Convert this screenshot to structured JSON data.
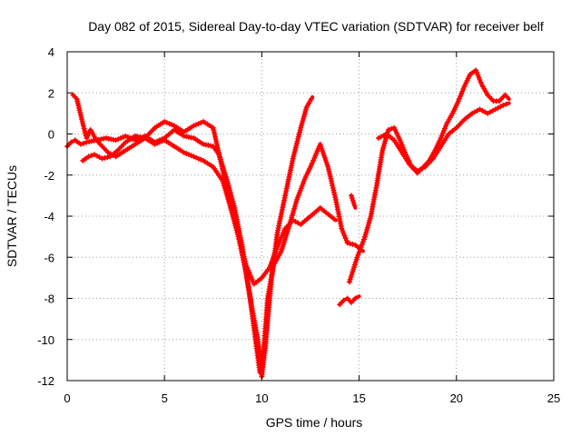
{
  "chart_data": {
    "type": "line",
    "title": "Day 082 of 2015, Sidereal Day-to-day VTEC variation (SDTVAR) for receiver belf",
    "xlabel": "GPS time / hours",
    "ylabel": "SDTVAR / TECUs",
    "xlim": [
      0,
      25
    ],
    "ylim": [
      -12,
      4
    ],
    "xticks": [
      0,
      5,
      10,
      15,
      20,
      25
    ],
    "yticks": [
      -12,
      -10,
      -8,
      -6,
      -4,
      -2,
      0,
      2,
      4
    ],
    "xtick_labels": [
      "0",
      "5",
      "10",
      "15",
      "20",
      "25"
    ],
    "ytick_labels": [
      "-12",
      "-10",
      "-8",
      "-6",
      "-4",
      "-2",
      "0",
      "2",
      "4"
    ],
    "grid": true,
    "legend": "none",
    "marker": "plus",
    "series_color": "#ff0000",
    "series": [
      {
        "x": [
          0.0,
          0.2,
          0.4,
          0.7,
          1.0,
          1.5,
          2.0,
          2.5,
          3.0,
          3.5,
          4.0,
          4.5,
          5.0,
          5.5,
          6.0,
          6.5,
          7.0,
          7.5,
          7.8,
          8.2,
          8.6,
          9.0,
          9.4,
          9.7,
          9.9,
          10.1,
          10.3,
          10.6,
          11.0,
          11.4,
          11.8,
          12.2,
          12.6,
          13.0,
          13.4,
          13.8,
          14.1,
          14.4,
          14.8,
          15.2
        ],
        "y": [
          -0.6,
          -0.4,
          -0.3,
          -0.5,
          -0.4,
          -0.3,
          -0.2,
          -0.3,
          -0.1,
          -0.3,
          -0.1,
          -0.4,
          -0.2,
          0.2,
          -0.1,
          -0.2,
          -0.5,
          -0.6,
          -1.0,
          -2.2,
          -3.6,
          -5.5,
          -8.0,
          -10.2,
          -11.6,
          -10.5,
          -8.0,
          -6.4,
          -5.7,
          -4.5,
          -3.2,
          -2.2,
          -1.4,
          -0.5,
          -1.6,
          -3.2,
          -4.6,
          -5.3,
          -5.4,
          -5.7
        ]
      },
      {
        "x": [
          0.3,
          0.5,
          0.8,
          1.0,
          1.2,
          1.5,
          1.8,
          2.1,
          2.5,
          3.0,
          3.5,
          4.0,
          4.5,
          5.0,
          5.5,
          6.0,
          6.5,
          7.0,
          7.5,
          8.0,
          8.4,
          8.8,
          9.2,
          9.5,
          9.8,
          10.0,
          10.2,
          10.5,
          10.8,
          11.2,
          11.6,
          12.0,
          12.3,
          12.6
        ],
        "y": [
          1.9,
          1.7,
          0.5,
          -0.2,
          0.2,
          -0.3,
          -0.6,
          -0.9,
          -1.1,
          -0.8,
          -0.5,
          -0.2,
          0.3,
          0.6,
          0.4,
          0.1,
          0.4,
          0.6,
          0.3,
          -1.8,
          -3.5,
          -5.0,
          -6.8,
          -8.5,
          -10.0,
          -11.8,
          -10.2,
          -7.0,
          -4.8,
          -3.0,
          -1.2,
          0.3,
          1.3,
          1.8
        ]
      },
      {
        "x": [
          0.8,
          1.1,
          1.4,
          1.8,
          2.2,
          2.6,
          3.0,
          3.5,
          4.0,
          4.5,
          5.0,
          5.5,
          6.0,
          6.5,
          7.0,
          7.5,
          8.0,
          8.4,
          8.8,
          9.2,
          9.6,
          10.0,
          10.4,
          10.8,
          11.2,
          11.6,
          12.0,
          12.5,
          13.0,
          13.4,
          13.8
        ],
        "y": [
          -1.3,
          -1.1,
          -1.0,
          -1.2,
          -1.1,
          -0.8,
          -0.4,
          -0.1,
          -0.2,
          -0.5,
          -0.3,
          -0.6,
          -0.9,
          -1.1,
          -1.3,
          -1.6,
          -2.3,
          -3.6,
          -5.0,
          -6.4,
          -7.3,
          -7.0,
          -6.5,
          -5.5,
          -4.6,
          -4.2,
          -4.4,
          -4.0,
          -3.6,
          -3.9,
          -4.2
        ]
      },
      {
        "x": [
          14.0,
          14.2,
          14.4,
          14.6,
          14.8,
          15.0
        ],
        "y": [
          -8.3,
          -8.1,
          -8.0,
          -8.2,
          -8.0,
          -7.9
        ]
      },
      {
        "x": [
          14.5,
          14.7,
          14.9,
          15.1,
          15.3,
          15.6,
          15.9,
          16.2,
          16.5,
          16.8,
          17.1,
          17.4,
          17.7,
          18.0,
          18.3,
          18.6,
          18.9,
          19.2,
          19.5,
          19.8,
          20.1,
          20.4,
          20.7,
          21.0,
          21.3,
          21.6,
          21.9,
          22.2,
          22.5,
          22.7
        ],
        "y": [
          -7.2,
          -6.6,
          -6.0,
          -5.5,
          -5.0,
          -4.0,
          -2.5,
          -0.8,
          0.2,
          0.3,
          -0.3,
          -1.0,
          -1.6,
          -1.9,
          -1.6,
          -1.3,
          -0.8,
          -0.2,
          0.5,
          1.0,
          1.6,
          2.3,
          2.9,
          3.1,
          2.4,
          1.9,
          1.6,
          1.6,
          1.9,
          1.7
        ]
      },
      {
        "x": [
          16.0,
          16.4,
          16.8,
          17.2,
          17.6,
          18.0,
          18.4,
          18.8,
          19.2,
          19.6,
          20.0,
          20.4,
          20.8,
          21.2,
          21.6,
          22.0,
          22.4,
          22.7
        ],
        "y": [
          -0.2,
          0.0,
          -0.3,
          -0.9,
          -1.5,
          -1.8,
          -1.6,
          -1.2,
          -0.6,
          0.0,
          0.3,
          0.7,
          1.0,
          1.2,
          1.0,
          1.2,
          1.4,
          1.5
        ]
      },
      {
        "x": [
          14.6,
          14.8
        ],
        "y": [
          -3.0,
          -3.6
        ]
      }
    ]
  }
}
